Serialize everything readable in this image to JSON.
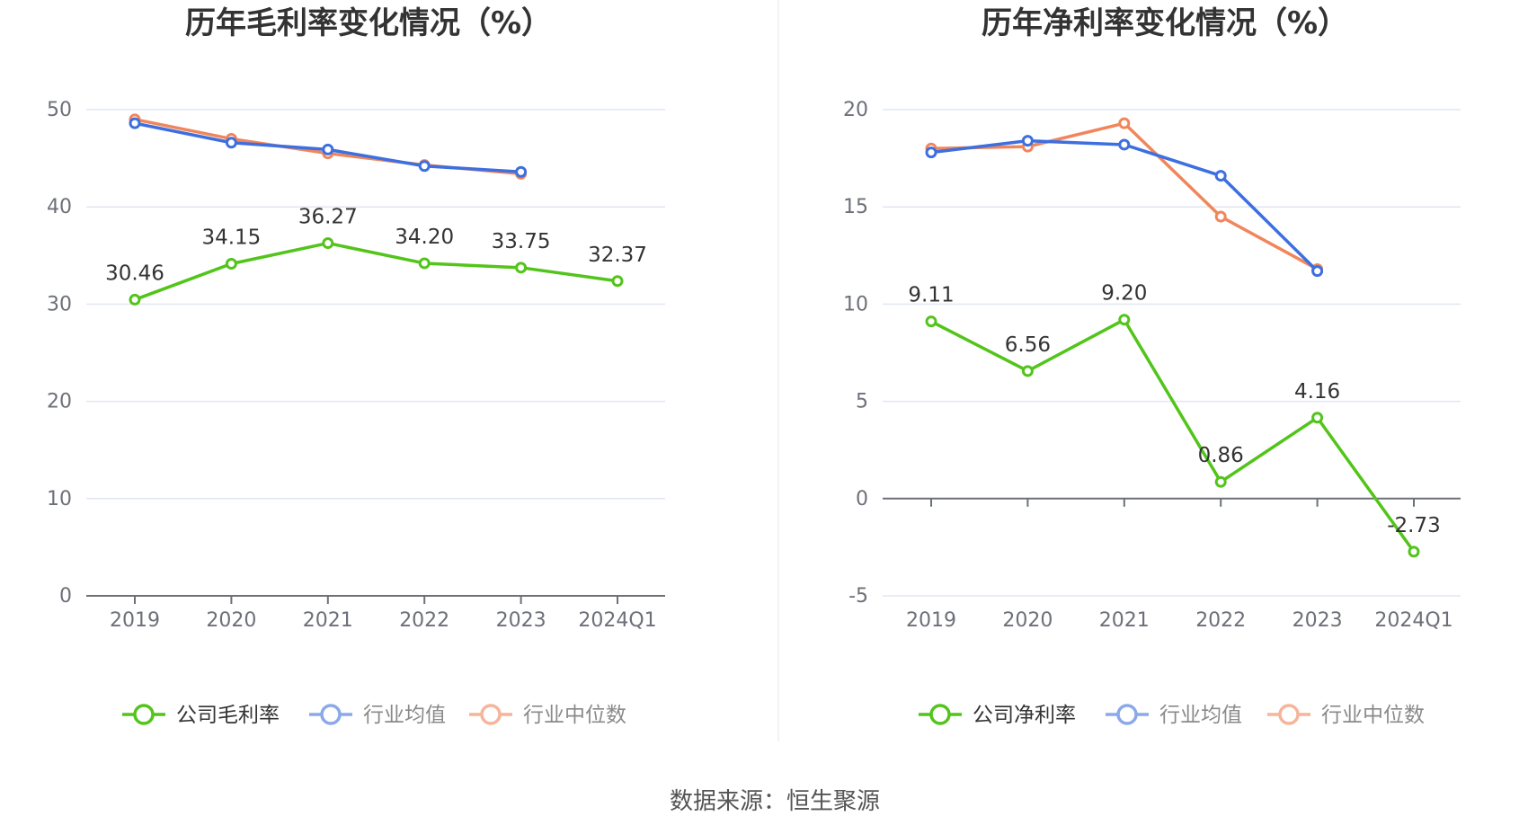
{
  "source": "数据来源：恒生聚源",
  "colors": {
    "company": "#52c41a",
    "industry_avg": "#3d6fe0",
    "industry_median": "#f0865a",
    "legend_avg": "#8aa8ea",
    "legend_median": "#f6b49a"
  },
  "chart_data": [
    {
      "type": "line",
      "title": "历年毛利率变化情况（%）",
      "categories": [
        "2019",
        "2020",
        "2021",
        "2022",
        "2023",
        "2024Q1"
      ],
      "ylim": [
        0,
        50
      ],
      "yticks": [
        0,
        10,
        20,
        30,
        40,
        50
      ],
      "ytick_labels": [
        "0",
        "10",
        "20",
        "30",
        "40",
        "50"
      ],
      "grid": true,
      "legend": "bottom",
      "series": [
        {
          "name": "公司毛利率",
          "key": "company",
          "values": [
            30.46,
            34.15,
            36.27,
            34.2,
            33.75,
            32.37
          ],
          "labels": [
            "30.46",
            "34.15",
            "36.27",
            "34.20",
            "33.75",
            "32.37"
          ]
        },
        {
          "name": "行业均值",
          "key": "industry_avg",
          "values": [
            48.6,
            46.6,
            45.9,
            44.2,
            43.6,
            null
          ]
        },
        {
          "name": "行业中位数",
          "key": "industry_median",
          "values": [
            49.0,
            47.0,
            45.5,
            44.3,
            43.4,
            null
          ]
        }
      ]
    },
    {
      "type": "line",
      "title": "历年净利率变化情况（%）",
      "categories": [
        "2019",
        "2020",
        "2021",
        "2022",
        "2023",
        "2024Q1"
      ],
      "ylim": [
        -5,
        20
      ],
      "yticks": [
        -5,
        0,
        5,
        10,
        15,
        20
      ],
      "ytick_labels": [
        "-5",
        "0",
        "5",
        "10",
        "15",
        "20"
      ],
      "grid": true,
      "legend": "bottom",
      "series": [
        {
          "name": "公司净利率",
          "key": "company",
          "values": [
            9.11,
            6.56,
            9.2,
            0.86,
            4.16,
            -2.73
          ],
          "labels": [
            "9.11",
            "6.56",
            "9.20",
            "0.86",
            "4.16",
            "-2.73"
          ]
        },
        {
          "name": "行业均值",
          "key": "industry_avg",
          "values": [
            17.8,
            18.4,
            18.2,
            16.6,
            11.7,
            null
          ]
        },
        {
          "name": "行业中位数",
          "key": "industry_median",
          "values": [
            18.0,
            18.1,
            19.3,
            14.5,
            11.8,
            null
          ]
        }
      ]
    }
  ]
}
